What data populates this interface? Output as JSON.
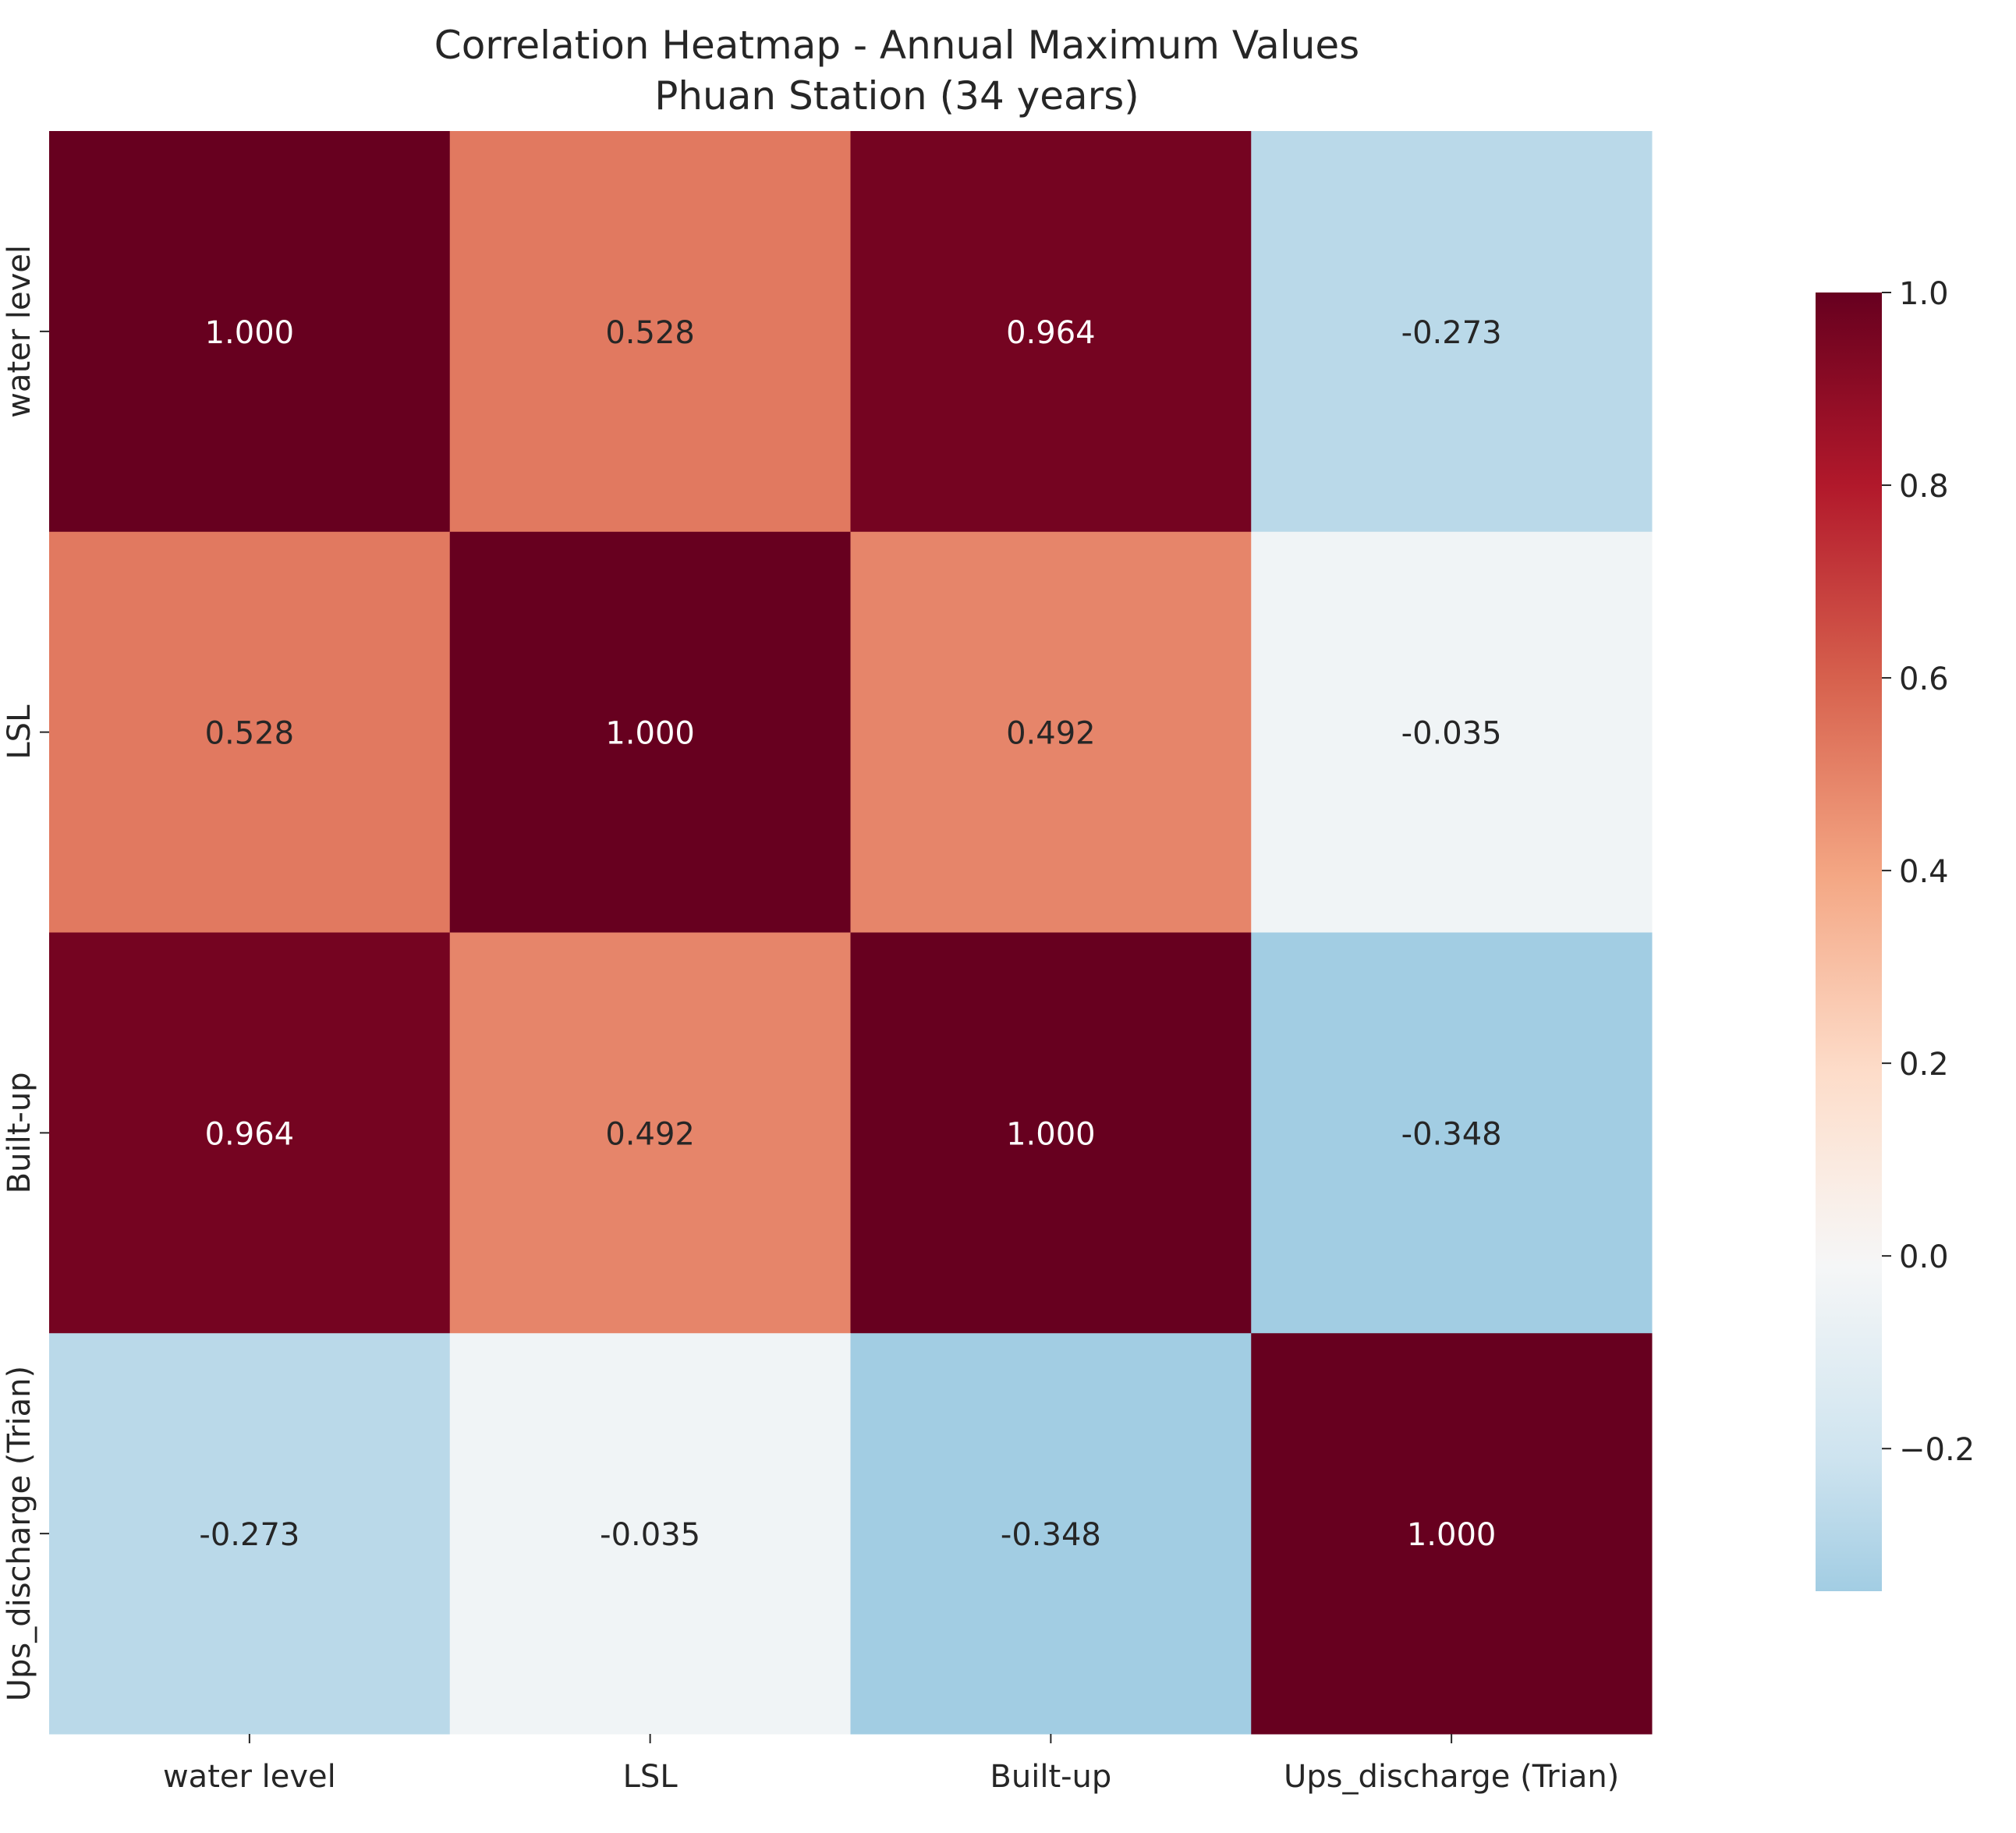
{
  "chart_data": {
    "type": "heatmap",
    "title": "Correlation Heatmap - Annual Maximum Values",
    "subtitle": "Phuan Station (34 years)",
    "xlabel": "",
    "ylabel": "",
    "rows": [
      "water level",
      "LSL",
      "Built-up",
      "Ups_discharge (Trian)"
    ],
    "columns": [
      "water level",
      "LSL",
      "Built-up",
      "Ups_discharge (Trian)"
    ],
    "values": [
      [
        1.0,
        0.528,
        0.964,
        -0.273
      ],
      [
        0.528,
        1.0,
        0.492,
        -0.035
      ],
      [
        0.964,
        0.492,
        1.0,
        -0.348
      ],
      [
        -0.273,
        -0.035,
        -0.348,
        1.0
      ]
    ],
    "value_labels": [
      [
        "1.000",
        "0.528",
        "0.964",
        "-0.273"
      ],
      [
        "0.528",
        "1.000",
        "0.492",
        "-0.035"
      ],
      [
        "0.964",
        "0.492",
        "1.000",
        "-0.348"
      ],
      [
        "-0.273",
        "-0.035",
        "-0.348",
        "1.000"
      ]
    ],
    "colormap": "RdBu_r",
    "center": 0,
    "vmin": -0.348,
    "vmax": 1.0,
    "colorbar": {
      "ticks": [
        1.0,
        0.8,
        0.6,
        0.4,
        0.2,
        0.0,
        -0.2
      ],
      "tick_labels": [
        "1.0",
        "0.8",
        "0.6",
        "0.4",
        "0.2",
        "0.0",
        "−0.2"
      ],
      "placement": "right"
    },
    "grid": false
  }
}
